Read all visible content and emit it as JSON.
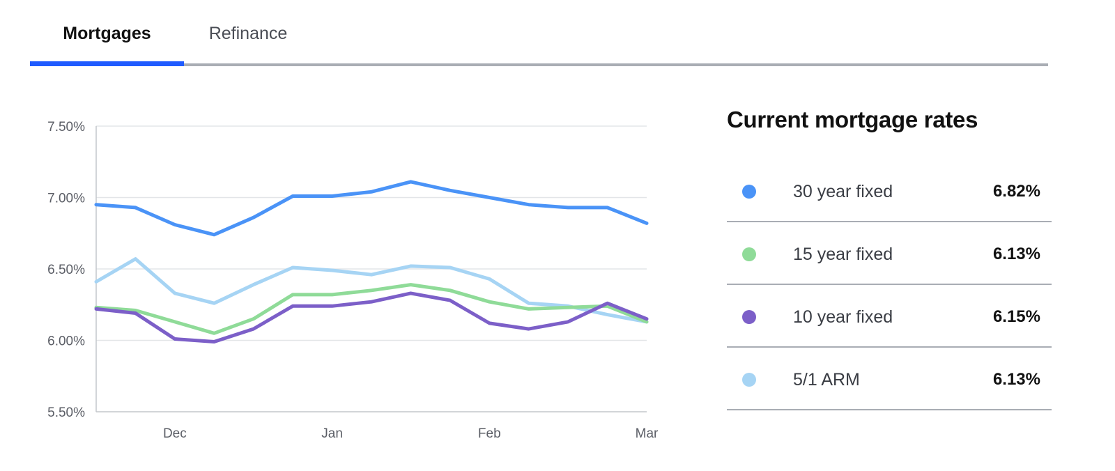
{
  "tabs": [
    {
      "label": "Mortgages",
      "active": true
    },
    {
      "label": "Refinance",
      "active": false
    }
  ],
  "panel": {
    "title": "Current mortgage rates",
    "rates": [
      {
        "label": "30 year fixed",
        "value": "6.82%",
        "color": "#4a93f7"
      },
      {
        "label": "15 year fixed",
        "value": "6.13%",
        "color": "#8fdb98"
      },
      {
        "label": "10 year fixed",
        "value": "6.15%",
        "color": "#7c5fc8"
      },
      {
        "label": "5/1 ARM",
        "value": "6.13%",
        "color": "#a6d4f4"
      }
    ]
  },
  "chart_data": {
    "type": "line",
    "y_ticks": [
      "7.50%",
      "7.00%",
      "6.50%",
      "6.00%",
      "5.50%"
    ],
    "y_tick_values": [
      7.5,
      7.0,
      6.5,
      6.0,
      5.5
    ],
    "ylim": [
      5.5,
      7.5
    ],
    "x_tick_labels": [
      "Dec",
      "Jan",
      "Feb",
      "Mar"
    ],
    "x_tick_index": [
      2,
      6,
      10,
      14
    ],
    "num_points": 15,
    "grid": true,
    "series": [
      {
        "name": "30 year fixed",
        "color": "#4a93f7",
        "values": [
          6.95,
          6.93,
          6.81,
          6.74,
          6.86,
          7.01,
          7.01,
          7.04,
          7.11,
          7.05,
          7.0,
          6.95,
          6.93,
          6.93,
          6.82
        ]
      },
      {
        "name": "5/1 ARM",
        "color": "#a6d4f4",
        "values": [
          6.41,
          6.57,
          6.33,
          6.26,
          6.39,
          6.51,
          6.49,
          6.46,
          6.52,
          6.51,
          6.43,
          6.26,
          6.24,
          6.18,
          6.13
        ]
      },
      {
        "name": "15 year fixed",
        "color": "#8fdb98",
        "values": [
          6.23,
          6.21,
          6.13,
          6.05,
          6.15,
          6.32,
          6.32,
          6.35,
          6.39,
          6.35,
          6.27,
          6.22,
          6.23,
          6.24,
          6.13
        ]
      },
      {
        "name": "10 year fixed",
        "color": "#7c5fc8",
        "values": [
          6.22,
          6.19,
          6.01,
          5.99,
          6.08,
          6.24,
          6.24,
          6.27,
          6.33,
          6.28,
          6.12,
          6.08,
          6.13,
          6.26,
          6.15
        ]
      }
    ]
  }
}
